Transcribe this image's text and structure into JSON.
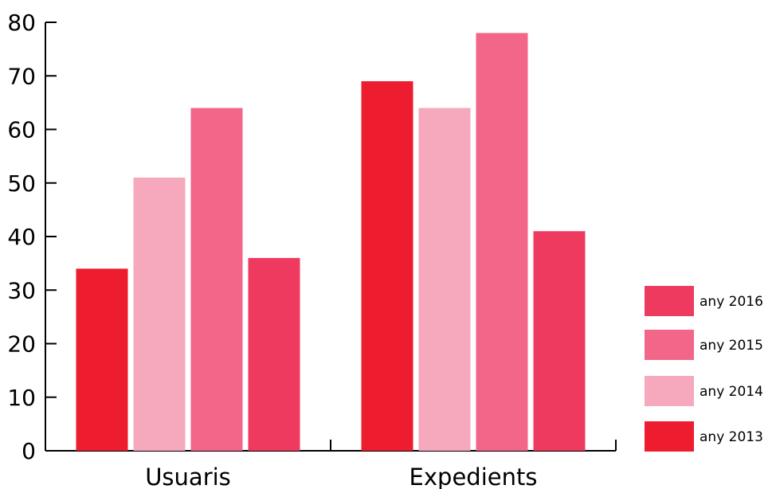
{
  "chart_data": {
    "type": "bar",
    "title": "",
    "xlabel": "",
    "ylabel": "",
    "categories": [
      "Usuaris",
      "Expedients"
    ],
    "series": [
      {
        "name": "any 2013",
        "values": [
          34,
          69
        ],
        "color": "#ed1c2e"
      },
      {
        "name": "any 2014",
        "values": [
          51,
          64
        ],
        "color": "#f6a8bd"
      },
      {
        "name": "any 2015",
        "values": [
          64,
          78
        ],
        "color": "#f26689"
      },
      {
        "name": "any 2016",
        "values": [
          36,
          41
        ],
        "color": "#ef3a60"
      }
    ],
    "ylim": [
      0,
      80
    ],
    "yticks": [
      0,
      10,
      20,
      30,
      40,
      50,
      60,
      70,
      80
    ],
    "grid": false,
    "legend_position": "right",
    "legend_order": [
      "any 2016",
      "any 2015",
      "any 2014",
      "any 2013"
    ]
  }
}
